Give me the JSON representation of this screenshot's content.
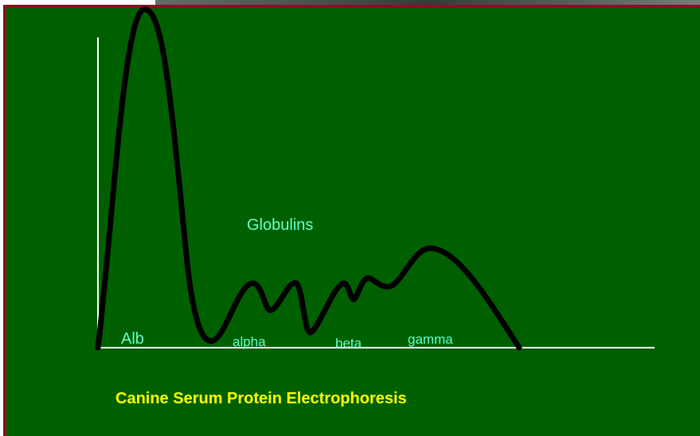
{
  "diagram": {
    "labels": {
      "globulins": "Globulins",
      "alb": "Alb",
      "alpha": "alpha",
      "beta": "beta",
      "gamma": "gamma"
    },
    "caption": "Canine Serum Protein Electrophoresis"
  }
}
